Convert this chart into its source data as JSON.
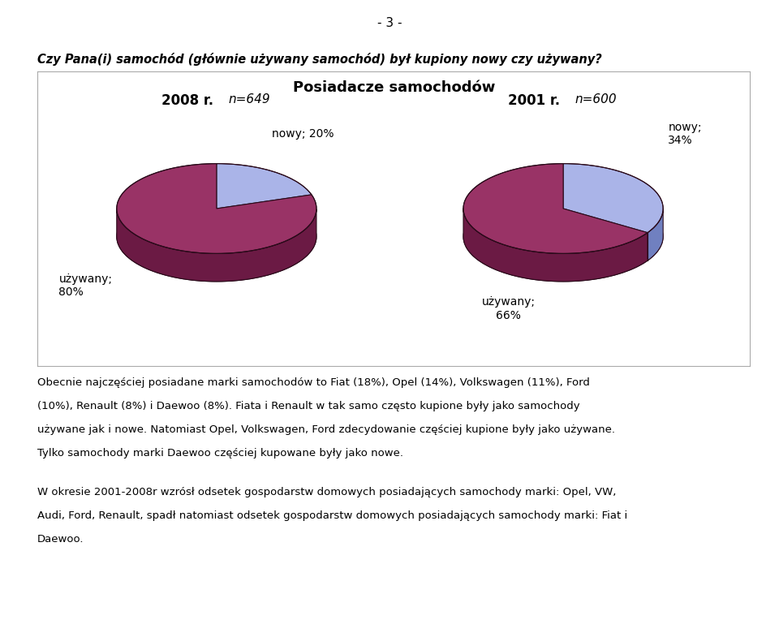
{
  "title": "Posiadacze samochodów",
  "question": "Czy Pana(i) samochód (głównie używany samochód) był kupiony nowy czy używany?",
  "pie1_year": "2008 r.",
  "pie1_n": "n=649",
  "pie1_used_pct": 80,
  "pie1_new_pct": 20,
  "pie2_year": "2001 r.",
  "pie2_n": "n=600",
  "pie2_used_pct": 66,
  "pie2_new_pct": 34,
  "used_color_top": "#993366",
  "used_color_side": "#6b1a44",
  "new_color_top": "#aab4e8",
  "new_color_side": "#7080c0",
  "edge_color": "#2a0a1a",
  "text1_line1": "Obecnie najczęściej posiadane marki samochodów to Fiat (18%), Opel (14%), Volkswagen (11%), Ford",
  "text1_line2": "(10%), Renault (8%) i Daewoo (8%). Fiata i Renault w tak samo często kupione były jako samochody",
  "text1_line3": "używane jak i nowe. Natomiast Opel, Volkswagen, Ford zdecydowanie częściej kupione były jako używane.",
  "text1_line4": "Tylko samochody marki Daewoo częściej kupowane były jako nowe.",
  "text2_line1": "W okresie 2001-2008r wzrósł odsetek gospodarstw domowych posiadających samochody marki: Opel, VW,",
  "text2_line2": "Audi, Ford, Renault, spadł natomiast odsetek gospodarstw domowych posiadających samochody marki: Fiat i",
  "text2_line3": "Daewoo.",
  "page_number": "- 3 -",
  "background_color": "#ffffff"
}
